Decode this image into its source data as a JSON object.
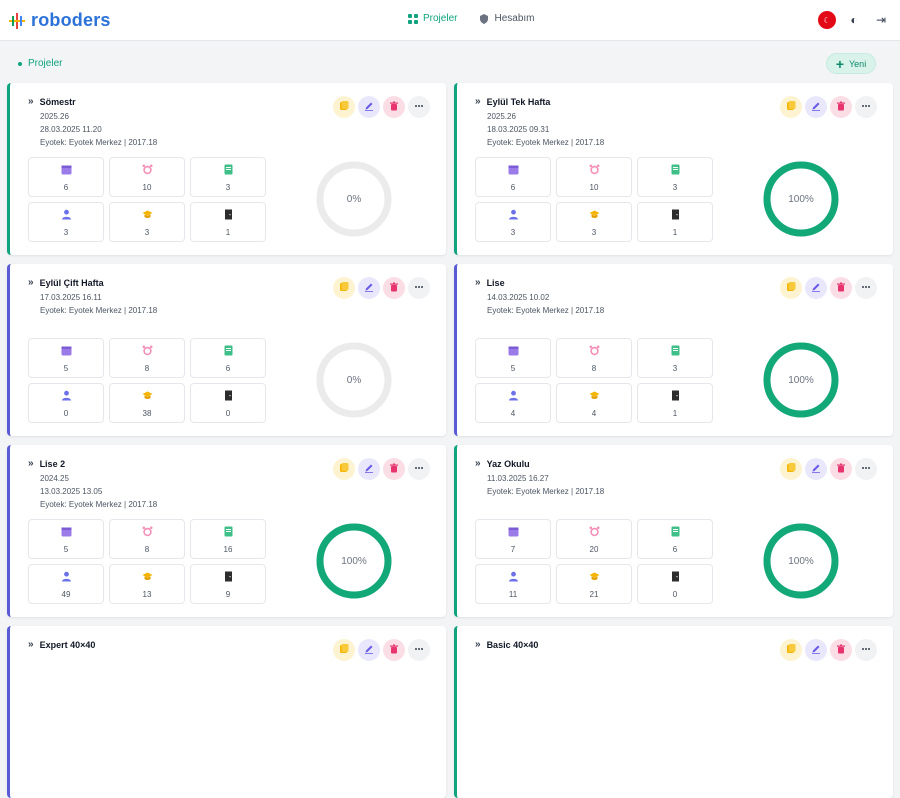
{
  "app": {
    "logo": "roboders"
  },
  "nav": {
    "items": [
      {
        "label": "Projeler",
        "active": true
      },
      {
        "label": "Hesabım",
        "active": false
      }
    ]
  },
  "breadcrumb": "Projeler",
  "new_button": "Yeni",
  "colors": {
    "accent": "#10a37f",
    "purple": "#5b5bd6"
  },
  "cards": [
    {
      "title": "Sömestr",
      "lines": [
        "2025.26",
        "28.03.2025 11.20",
        "Eyotek: Eyotek Merkez | 2017.18"
      ],
      "stats": [
        "6",
        "10",
        "3",
        "3",
        "3",
        "1"
      ],
      "progress_label": "0%",
      "progress": 0,
      "border": "green"
    },
    {
      "title": "Eylül Tek Hafta",
      "lines": [
        "2025.26",
        "18.03.2025 09.31",
        "Eyotek: Eyotek Merkez | 2017.18"
      ],
      "stats": [
        "6",
        "10",
        "3",
        "3",
        "3",
        "1"
      ],
      "progress_label": "100%",
      "progress": 100,
      "border": "green"
    },
    {
      "title": "Eylül Çift Hafta",
      "lines": [
        "17.03.2025 16.11",
        "Eyotek: Eyotek Merkez | 2017.18"
      ],
      "stats": [
        "5",
        "8",
        "6",
        "0",
        "38",
        "0"
      ],
      "progress_label": "0%",
      "progress": 0,
      "border": "blue"
    },
    {
      "title": "Lise",
      "lines": [
        "14.03.2025 10.02",
        "Eyotek: Eyotek Merkez | 2017.18"
      ],
      "stats": [
        "5",
        "8",
        "3",
        "4",
        "4",
        "1"
      ],
      "progress_label": "100%",
      "progress": 100,
      "border": "blue"
    },
    {
      "title": "Lise 2",
      "lines": [
        "2024.25",
        "13.03.2025 13.05",
        "Eyotek: Eyotek Merkez | 2017.18"
      ],
      "stats": [
        "5",
        "8",
        "16",
        "49",
        "13",
        "9"
      ],
      "progress_label": "100%",
      "progress": 100,
      "border": "blue"
    },
    {
      "title": "Yaz Okulu",
      "lines": [
        "11.03.2025 16.27",
        "Eyotek: Eyotek Merkez | 2017.18"
      ],
      "stats": [
        "7",
        "20",
        "6",
        "11",
        "21",
        "0"
      ],
      "progress_label": "100%",
      "progress": 100,
      "border": "green"
    },
    {
      "title": "Expert 40×40",
      "lines": [],
      "stats": [],
      "progress_label": "",
      "progress": 0,
      "border": "blue"
    },
    {
      "title": "Basic 40×40",
      "lines": [],
      "stats": [],
      "progress_label": "",
      "progress": 0,
      "border": "green"
    }
  ],
  "stat_icons": [
    "calendar-icon",
    "alarm-icon",
    "book-icon",
    "user-icon",
    "hat-icon",
    "door-icon"
  ]
}
